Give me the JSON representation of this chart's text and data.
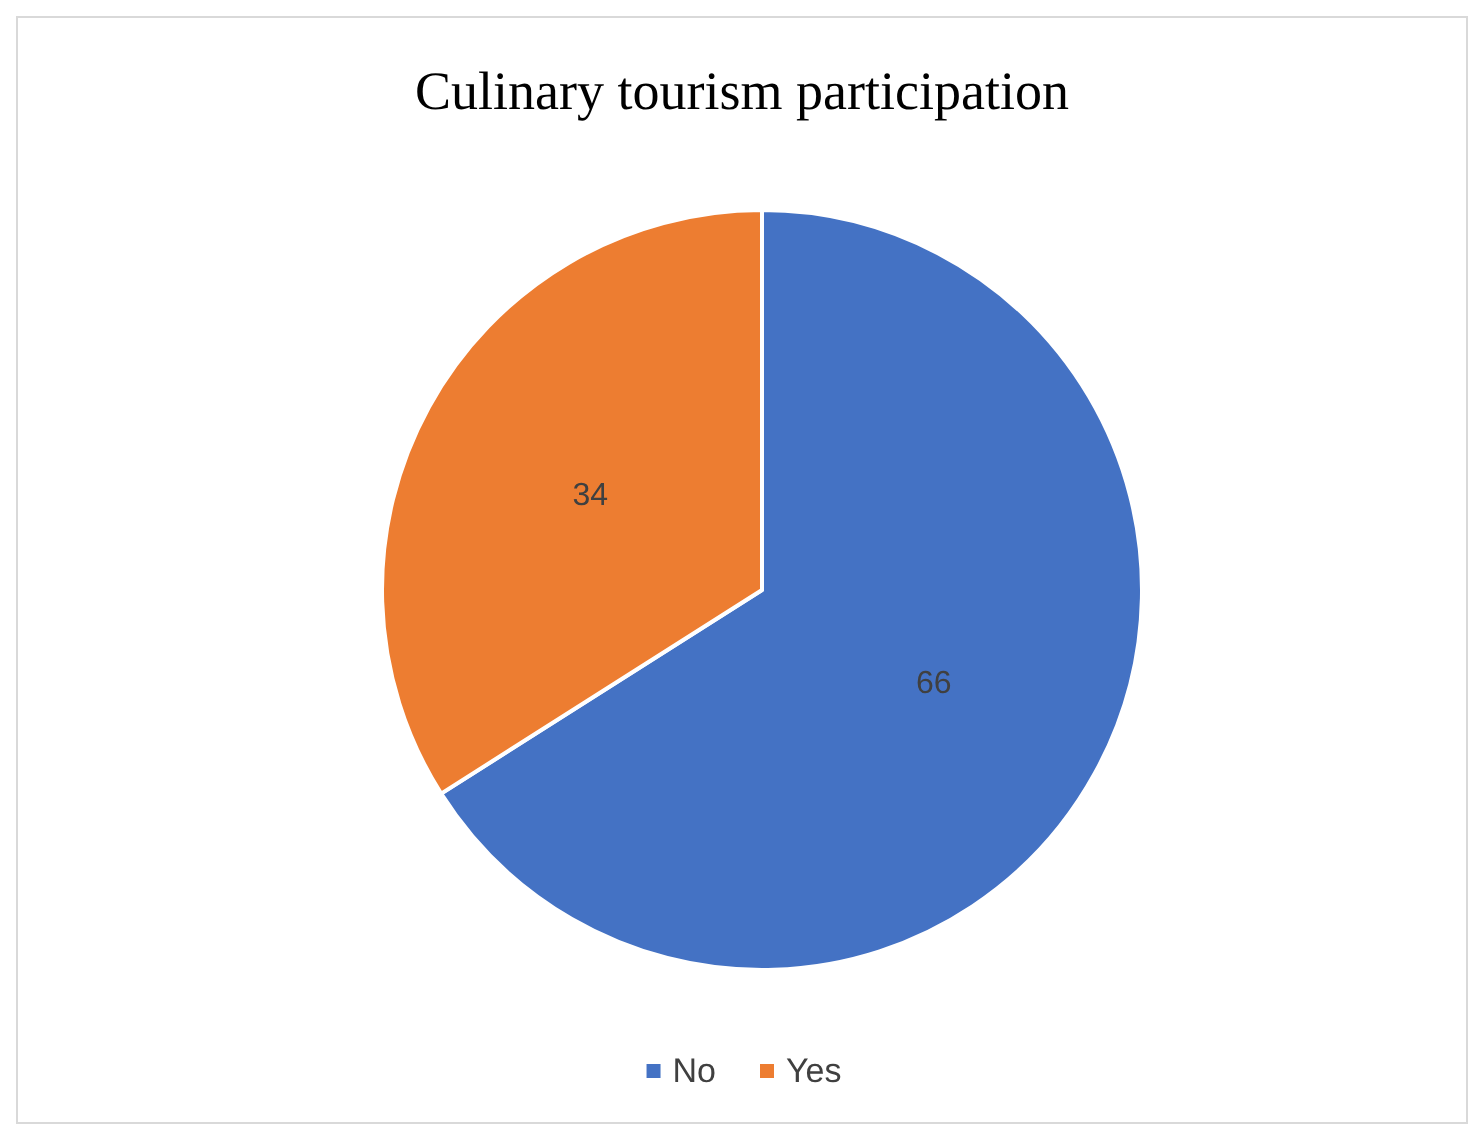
{
  "chart_data": {
    "type": "pie",
    "title": "Culinary tourism participation",
    "categories": [
      "No",
      "Yes"
    ],
    "values": [
      66,
      34
    ],
    "colors": [
      "#4472c4",
      "#ed7d31"
    ],
    "data_labels": true,
    "legend": "bottom"
  }
}
